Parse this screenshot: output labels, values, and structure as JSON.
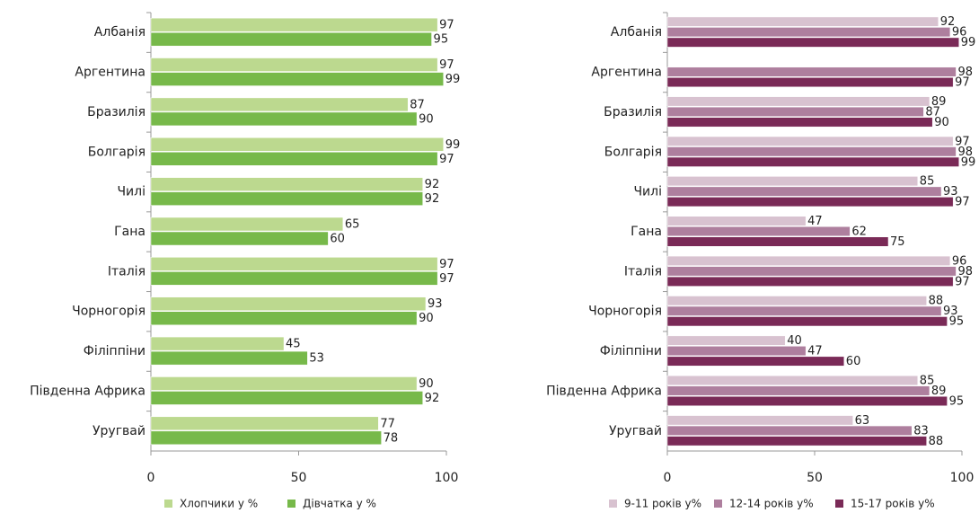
{
  "chart_data": [
    {
      "type": "bar",
      "orientation": "horizontal",
      "categories": [
        "Албанія",
        "Аргентина",
        "Бразилія",
        "Болгарія",
        "Чилі",
        "Гана",
        "Італія",
        "Чорногорія",
        "Філіппіни",
        "Південна Африка",
        "Уругвай"
      ],
      "series": [
        {
          "name": "Хлопчики у %",
          "color": "#bcd98f",
          "values": [
            97,
            97,
            87,
            99,
            92,
            65,
            97,
            93,
            45,
            90,
            77
          ]
        },
        {
          "name": "Дівчатка у %",
          "color": "#77b94a",
          "values": [
            95,
            99,
            90,
            97,
            92,
            60,
            97,
            90,
            53,
            92,
            78
          ]
        }
      ],
      "xlim": [
        0,
        100
      ],
      "xticks": [
        0,
        50,
        100
      ]
    },
    {
      "type": "bar",
      "orientation": "horizontal",
      "categories": [
        "Албанія",
        "Аргентина",
        "Бразилія",
        "Болгарія",
        "Чилі",
        "Гана",
        "Італія",
        "Чорногорія",
        "Філіппіни",
        "Південна Африка",
        "Уругвай"
      ],
      "series": [
        {
          "name": "9-11 років у%",
          "color": "#d8c2d0",
          "values": [
            92,
            null,
            89,
            97,
            85,
            47,
            96,
            88,
            40,
            85,
            63
          ]
        },
        {
          "name": "12-14 років у%",
          "color": "#ae7f9e",
          "values": [
            96,
            98,
            87,
            98,
            93,
            62,
            98,
            93,
            47,
            89,
            83
          ]
        },
        {
          "name": "15-17 років у%",
          "color": "#7a2a57",
          "values": [
            99,
            97,
            90,
            99,
            97,
            75,
            97,
            95,
            60,
            95,
            88
          ]
        }
      ],
      "xlim": [
        0,
        100
      ],
      "xticks": [
        0,
        50,
        100
      ]
    }
  ]
}
